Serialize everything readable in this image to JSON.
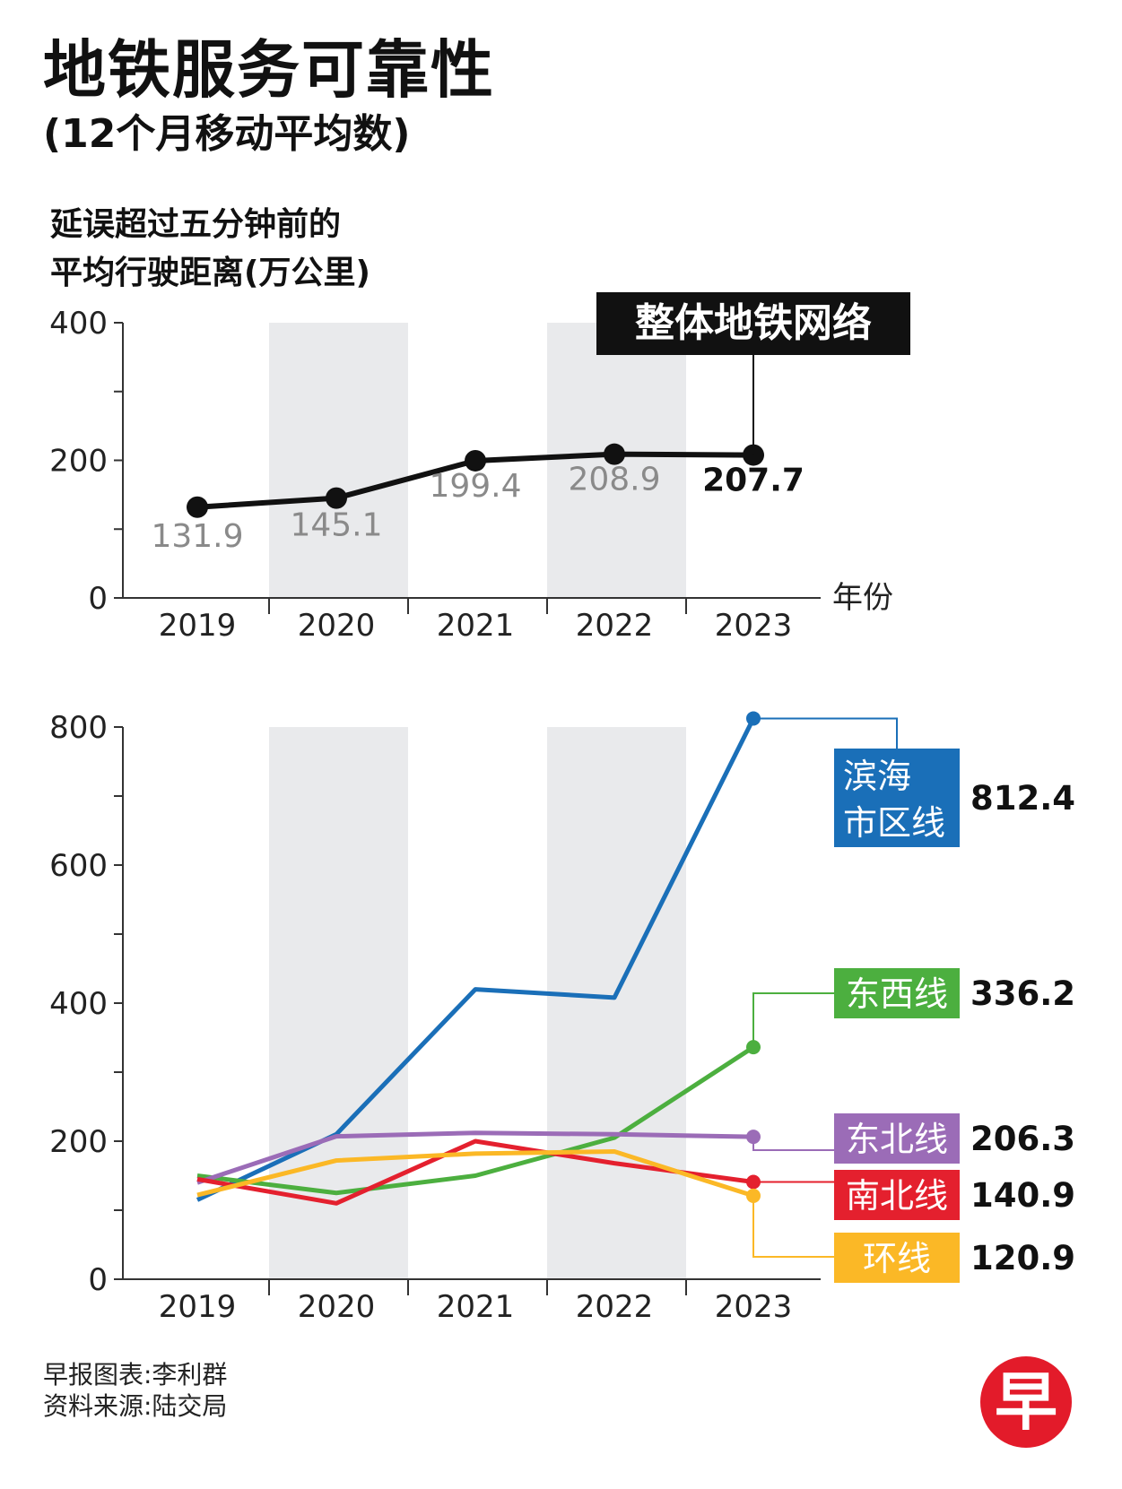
{
  "header": {
    "title": "地铁服务可靠性",
    "subtitle": "(12个月移动平均数)",
    "ylabel_line1": "延误超过五分钟前的",
    "ylabel_line2": "平均行驶距离(万公里)"
  },
  "footer": {
    "credit": "早报图表:李利群",
    "source": "资料来源:陆交局"
  },
  "logo": {
    "text": "早",
    "color": "#e31b2a"
  },
  "chart_data": [
    {
      "type": "line",
      "categories": [
        "2019",
        "2020",
        "2021",
        "2022",
        "2023"
      ],
      "ylim": [
        0,
        400
      ],
      "yticks": [
        "0",
        "200",
        "400"
      ],
      "xlabel": "年份",
      "ylabel": "延误超过五分钟前的平均行驶距离(万公里)",
      "shaded_years": [
        "2020",
        "2022"
      ],
      "series": [
        {
          "name": "整体地铁网络",
          "color": "#111111",
          "values": [
            131.9,
            145.1,
            199.4,
            208.9,
            207.7
          ],
          "value_labels": [
            "131.9",
            "145.1",
            "199.4",
            "208.9",
            "207.7"
          ]
        }
      ]
    },
    {
      "type": "line",
      "categories": [
        "2019",
        "2020",
        "2021",
        "2022",
        "2023"
      ],
      "ylim": [
        0,
        800
      ],
      "yticks": [
        "0",
        "200",
        "400",
        "600",
        "800"
      ],
      "shaded_years": [
        "2020",
        "2022"
      ],
      "series": [
        {
          "name": "滨海市区线",
          "label_line1": "滨海",
          "label_line2": "市区线",
          "color": "#1a6fb8",
          "values": [
            115,
            210,
            420,
            408,
            812.4
          ],
          "end_label": "812.4"
        },
        {
          "name": "东西线",
          "color": "#4caf3f",
          "values": [
            150,
            125,
            150,
            205,
            336.2
          ],
          "end_label": "336.2"
        },
        {
          "name": "东北线",
          "color": "#9b6cb7",
          "values": [
            140,
            207,
            212,
            210,
            206.3
          ],
          "end_label": "206.3"
        },
        {
          "name": "南北线",
          "color": "#e4202e",
          "values": [
            145,
            110,
            200,
            168,
            140.9
          ],
          "end_label": "140.9"
        },
        {
          "name": "环线",
          "color": "#fbb826",
          "values": [
            122,
            172,
            182,
            185,
            120.9
          ],
          "end_label": "120.9"
        }
      ]
    }
  ]
}
